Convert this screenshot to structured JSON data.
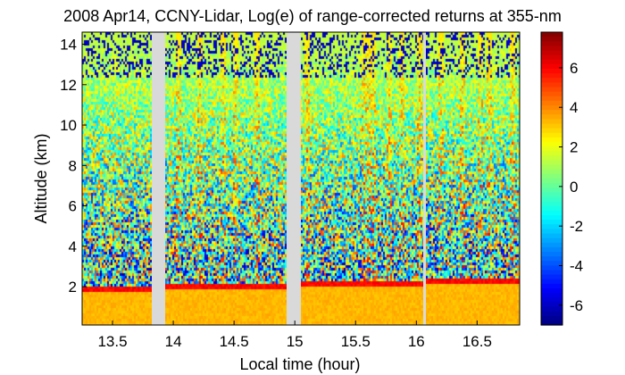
{
  "chart_data": {
    "type": "heatmap",
    "title": "2008 Apr14, CCNY-Lidar, Log(e) of range-corrected returns at 355-nm",
    "xlabel": "Local time (hour)",
    "ylabel": "Altitude (km)",
    "xlim": [
      13.25,
      16.85
    ],
    "ylim": [
      0.1,
      14.6
    ],
    "x_ticks": [
      13.5,
      14,
      14.5,
      15,
      15.5,
      16,
      16.5
    ],
    "x_tick_labels": [
      "13.5",
      "14",
      "14.5",
      "15",
      "15.5",
      "16",
      "16.5"
    ],
    "y_ticks": [
      2,
      4,
      6,
      8,
      10,
      12,
      14
    ],
    "y_tick_labels": [
      "2",
      "4",
      "6",
      "8",
      "10",
      "12",
      "14"
    ],
    "colorbar": {
      "range": [
        -7,
        7.8
      ],
      "ticks": [
        -6,
        -4,
        -2,
        0,
        2,
        4,
        6
      ],
      "tick_labels": [
        "-6",
        "-4",
        "-2",
        "0",
        "2",
        "4",
        "6"
      ],
      "colormap": "jet"
    },
    "data_segments": [
      {
        "x_start": 13.25,
        "x_end": 13.82,
        "boundary_layer_top_km": 2.0
      },
      {
        "x_start": 13.93,
        "x_end": 14.93,
        "boundary_layer_top_km": 2.1
      },
      {
        "x_start": 15.05,
        "x_end": 16.06,
        "boundary_layer_top_km": 2.3
      },
      {
        "x_start": 16.08,
        "x_end": 16.85,
        "boundary_layer_top_km": 2.35
      }
    ],
    "gap_color": "#d9d9d9"
  }
}
